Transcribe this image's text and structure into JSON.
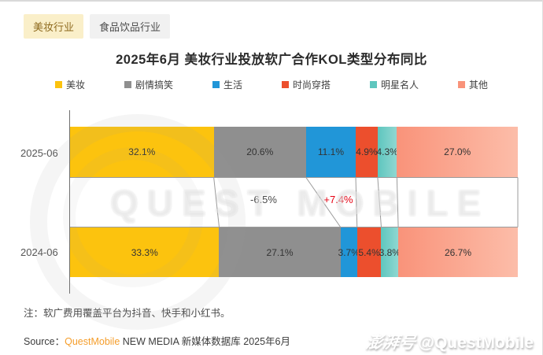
{
  "tabs": [
    {
      "label": "美妆行业",
      "active": true
    },
    {
      "label": "食品饮品行业",
      "active": false
    }
  ],
  "chart_data": {
    "type": "bar",
    "variant": "horizontal-stacked-100pct",
    "title": "2025年6月 美妆行业投放软广合作KOL类型分布同比",
    "categories": [
      "2025-06",
      "2024-06"
    ],
    "xlim": [
      0,
      100
    ],
    "legend_position": "top",
    "series": [
      {
        "name": "美妆",
        "color": "#fcc30e",
        "color2": "",
        "values": [
          32.1,
          33.3
        ],
        "labels": [
          "32.1%",
          "33.3%"
        ]
      },
      {
        "name": "剧情搞笑",
        "color": "#8f8f8f",
        "color2": "",
        "values": [
          20.6,
          27.1
        ],
        "labels": [
          "20.6%",
          "27.1%"
        ]
      },
      {
        "name": "生活",
        "color": "#2196d8",
        "color2": "",
        "values": [
          11.1,
          3.7
        ],
        "labels": [
          "11.1%",
          "3.7%"
        ]
      },
      {
        "name": "时尚穿搭",
        "color": "#ec4f2d",
        "color2": "",
        "values": [
          4.9,
          5.4
        ],
        "labels": [
          "4.9%",
          "5.4%"
        ]
      },
      {
        "name": "明星名人",
        "color": "#5ec6be",
        "color2": "#8fd7d1",
        "values": [
          4.3,
          3.8
        ],
        "labels": [
          "4.3%",
          "3.8%"
        ]
      },
      {
        "name": "其他",
        "color": "#f9937a",
        "color2": "#fcbda9",
        "values": [
          27.0,
          26.7
        ],
        "labels": [
          "27.0%",
          "26.7%"
        ]
      }
    ],
    "annotations": [
      {
        "text": "-6.5%",
        "color": "#4a4a4a",
        "refers_to": "剧情搞笑"
      },
      {
        "text": "+7.4%",
        "color": "#e60012",
        "refers_to": "生活"
      }
    ]
  },
  "note": "注：软广费用覆盖平台为抖音、快手和小红书。",
  "source": {
    "label": "Source：",
    "brand": "QuestMobile",
    "rest": " NEW MEDIA 新媒体数据库 2025年6月"
  },
  "watermark": {
    "ghost": "QUEST MOBILE",
    "badge_cn": "澎湃号",
    "badge_en": "@QuestMobile"
  }
}
